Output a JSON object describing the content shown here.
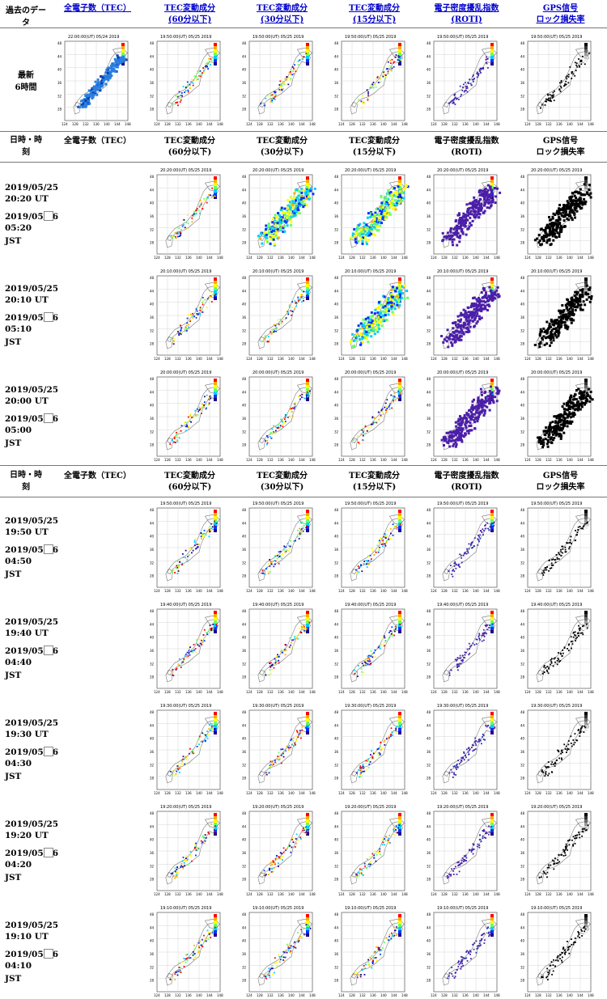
{
  "headers": {
    "past_data": "過去のデータ",
    "top_row": [
      {
        "line1": "全電子数（TEC）",
        "line2": ""
      },
      {
        "line1": "TEC変動成分",
        "line2": "(60分以下)"
      },
      {
        "line1": "TEC変動成分",
        "line2": "(30分以下)"
      },
      {
        "line1": "TEC変動成分",
        "line2": "(15分以下)"
      },
      {
        "line1": "電子密度擾乱指数",
        "line2": "(ROTI)"
      },
      {
        "line1": "GPS信号",
        "line2": "ロック損失率"
      }
    ],
    "datetime_label_1": "日時・時",
    "datetime_label_2": "刻",
    "section_row": [
      {
        "line1": "全電子数（TEC）",
        "line2": ""
      },
      {
        "line1": "TEC変動成分",
        "line2": "(60分以下)"
      },
      {
        "line1": "TEC変動成分",
        "line2": "(30分以下)"
      },
      {
        "line1": "TEC変動成分",
        "line2": "(15分以下)"
      },
      {
        "line1": "電子密度擾乱指数",
        "line2": "(ROTI)"
      },
      {
        "line1": "GPS信号",
        "line2": "ロック損失率"
      }
    ]
  },
  "latest": {
    "label_1": "最新",
    "label_2": "6時間",
    "tec_timestamp": "22:00:00(UT) 05/24 2019",
    "other_timestamp": "19:50:00(UT) 05/25 2019"
  },
  "map_labels": {
    "lat": [
      "48",
      "44",
      "40",
      "36",
      "32",
      "28"
    ],
    "lon": [
      "124",
      "128",
      "132",
      "136",
      "140",
      "144",
      "148"
    ],
    "tec_unit": "TEC [10^16/m²]",
    "roti_unit": "ROTI",
    "lol_unit": "LOL [%]"
  },
  "rows": [
    {
      "ut_date": "2019/05/25",
      "ut_time": "20:20 UT",
      "jst_date": "2019/05/26",
      "jst_time": "05:20",
      "jst_label": "JST",
      "timestamp": "20:20:00(UT) 05/25 2019",
      "intensity": [
        0,
        1,
        3,
        3,
        3,
        3
      ]
    },
    {
      "ut_date": "2019/05/25",
      "ut_time": "20:10 UT",
      "jst_date": "2019/05/26",
      "jst_time": "05:10",
      "jst_label": "JST",
      "timestamp": "20:10:00(UT) 05/25 2019",
      "intensity": [
        0,
        1,
        1,
        3,
        3,
        3
      ]
    },
    {
      "ut_date": "2019/05/25",
      "ut_time": "20:00 UT",
      "jst_date": "2019/05/26",
      "jst_time": "05:00",
      "jst_label": "JST",
      "timestamp": "20:00:00(UT) 05/25 2019",
      "intensity": [
        0,
        1,
        1,
        1,
        3,
        3
      ]
    },
    {
      "ut_date": "2019/05/25",
      "ut_time": "19:50 UT",
      "jst_date": "2019/05/26",
      "jst_time": "04:50",
      "jst_label": "JST",
      "timestamp": "19:50:00(UT) 05/25 2019",
      "intensity": [
        0,
        1,
        1,
        1,
        1,
        1
      ]
    },
    {
      "ut_date": "2019/05/25",
      "ut_time": "19:40 UT",
      "jst_date": "2019/05/26",
      "jst_time": "04:40",
      "jst_label": "JST",
      "timestamp": "19:40:00(UT) 05/25 2019",
      "intensity": [
        0,
        1,
        1,
        1,
        1,
        1
      ]
    },
    {
      "ut_date": "2019/05/25",
      "ut_time": "19:30 UT",
      "jst_date": "2019/05/26",
      "jst_time": "04:30",
      "jst_label": "JST",
      "timestamp": "19:30:00(UT) 05/25 2019",
      "intensity": [
        0,
        1,
        1,
        1,
        1,
        1
      ]
    },
    {
      "ut_date": "2019/05/25",
      "ut_time": "19:20 UT",
      "jst_date": "2019/05/26",
      "jst_time": "04:20",
      "jst_label": "JST",
      "timestamp": "19:20:00(UT) 05/25 2019",
      "intensity": [
        0,
        1,
        1,
        1,
        1,
        1
      ]
    },
    {
      "ut_date": "2019/05/25",
      "ut_time": "19:10 UT",
      "jst_date": "2019/05/26",
      "jst_time": "04:10",
      "jst_label": "JST",
      "timestamp": "19:10:00(UT) 05/25 2019",
      "intensity": [
        0,
        1,
        1,
        1,
        1,
        1
      ]
    }
  ],
  "colors": {
    "link": "#0000cc",
    "tec_blue": "#2a7fe0",
    "roti_purple": "#4b1fa8",
    "lol_black": "#000000",
    "colorbar": [
      "#ff0000",
      "#ffaa00",
      "#ffff00",
      "#66ff66",
      "#00ccff",
      "#0033ff",
      "#220088"
    ]
  }
}
